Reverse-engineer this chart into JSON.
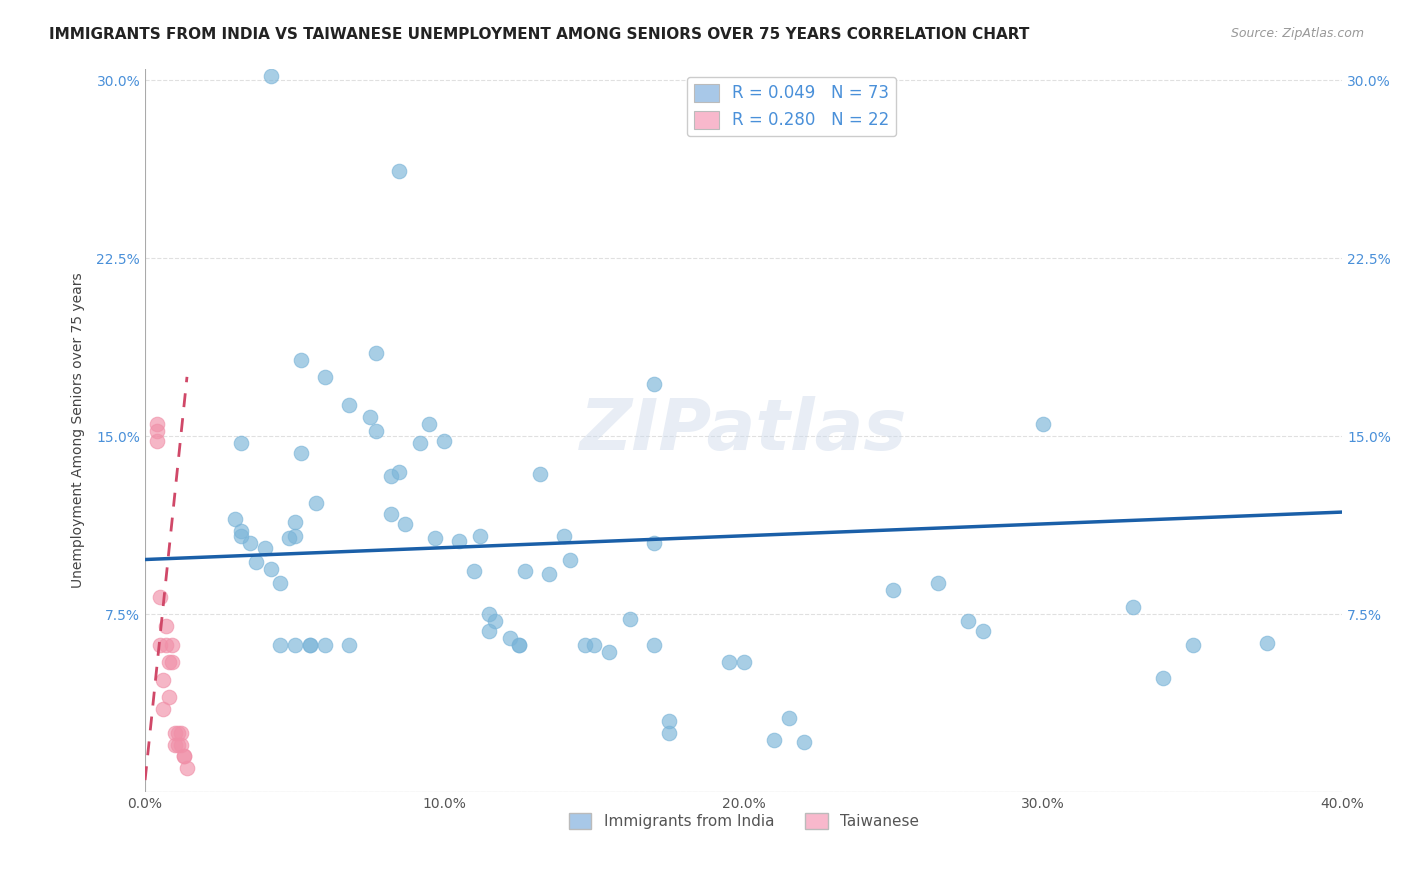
{
  "title": "IMMIGRANTS FROM INDIA VS TAIWANESE UNEMPLOYMENT AMONG SENIORS OVER 75 YEARS CORRELATION CHART",
  "source": "Source: ZipAtlas.com",
  "ylabel": "Unemployment Among Seniors over 75 years",
  "legend_entries": [
    {
      "label": "R = 0.049   N = 73",
      "facecolor": "#a8c8e8"
    },
    {
      "label": "R = 0.280   N = 22",
      "facecolor": "#f8b8cc"
    }
  ],
  "legend_bottom": [
    "Immigrants from India",
    "Taiwanese"
  ],
  "india_color": "#7ab4d8",
  "taiwan_color": "#f090a8",
  "india_line_color": "#1a5fa8",
  "taiwan_line_color": "#d04868",
  "background_color": "#ffffff",
  "grid_color": "#e0e0e0",
  "india_scatter_x": [
    0.085,
    0.042,
    0.052,
    0.032,
    0.077,
    0.068,
    0.095,
    0.082,
    0.052,
    0.092,
    0.048,
    0.03,
    0.032,
    0.032,
    0.035,
    0.04,
    0.037,
    0.042,
    0.045,
    0.05,
    0.057,
    0.05,
    0.075,
    0.077,
    0.082,
    0.085,
    0.087,
    0.097,
    0.1,
    0.105,
    0.11,
    0.112,
    0.115,
    0.115,
    0.117,
    0.122,
    0.125,
    0.127,
    0.135,
    0.132,
    0.142,
    0.14,
    0.147,
    0.15,
    0.155,
    0.162,
    0.175,
    0.175,
    0.17,
    0.195,
    0.2,
    0.21,
    0.215,
    0.22,
    0.25,
    0.265,
    0.275,
    0.28,
    0.3,
    0.33,
    0.34,
    0.35,
    0.375,
    0.17,
    0.068,
    0.05,
    0.06,
    0.055,
    0.045,
    0.17,
    0.055,
    0.06,
    0.125
  ],
  "india_scatter_y": [
    0.262,
    0.302,
    0.182,
    0.147,
    0.185,
    0.163,
    0.155,
    0.133,
    0.143,
    0.147,
    0.107,
    0.115,
    0.11,
    0.108,
    0.105,
    0.103,
    0.097,
    0.094,
    0.088,
    0.114,
    0.122,
    0.108,
    0.158,
    0.152,
    0.117,
    0.135,
    0.113,
    0.107,
    0.148,
    0.106,
    0.093,
    0.108,
    0.075,
    0.068,
    0.072,
    0.065,
    0.062,
    0.093,
    0.092,
    0.134,
    0.098,
    0.108,
    0.062,
    0.062,
    0.059,
    0.073,
    0.03,
    0.025,
    0.105,
    0.055,
    0.055,
    0.022,
    0.031,
    0.021,
    0.085,
    0.088,
    0.072,
    0.068,
    0.155,
    0.078,
    0.048,
    0.062,
    0.063,
    0.172,
    0.062,
    0.062,
    0.062,
    0.062,
    0.062,
    0.062,
    0.062,
    0.175,
    0.062
  ],
  "taiwan_scatter_x": [
    0.004,
    0.004,
    0.004,
    0.005,
    0.005,
    0.006,
    0.006,
    0.007,
    0.007,
    0.008,
    0.008,
    0.009,
    0.009,
    0.01,
    0.01,
    0.011,
    0.011,
    0.012,
    0.012,
    0.013,
    0.013,
    0.014
  ],
  "taiwan_scatter_y": [
    0.155,
    0.152,
    0.148,
    0.082,
    0.062,
    0.047,
    0.035,
    0.07,
    0.062,
    0.055,
    0.04,
    0.055,
    0.062,
    0.025,
    0.02,
    0.025,
    0.02,
    0.025,
    0.02,
    0.015,
    0.015,
    0.01
  ],
  "india_line_x_start": 0.0,
  "india_line_x_end": 0.4,
  "india_line_y_start": 0.098,
  "india_line_y_end": 0.118,
  "taiwan_line_x_start": 0.0,
  "taiwan_line_x_end": 0.014,
  "taiwan_line_y_start": 0.005,
  "taiwan_line_y_end": 0.175,
  "xmin": 0.0,
  "xmax": 0.4,
  "ymin": 0.0,
  "ymax": 0.305,
  "x_tick_vals": [
    0.0,
    0.1,
    0.2,
    0.3,
    0.4
  ],
  "x_tick_labels": [
    "0.0%",
    "10.0%",
    "20.0%",
    "30.0%",
    "40.0%"
  ],
  "y_tick_vals": [
    0.0,
    0.075,
    0.15,
    0.225,
    0.3
  ],
  "y_tick_labels": [
    "",
    "7.5%",
    "15.0%",
    "22.5%",
    "30.0%"
  ],
  "title_fontsize": 11,
  "source_fontsize": 9,
  "scatter_size": 110,
  "scatter_alpha": 0.65
}
